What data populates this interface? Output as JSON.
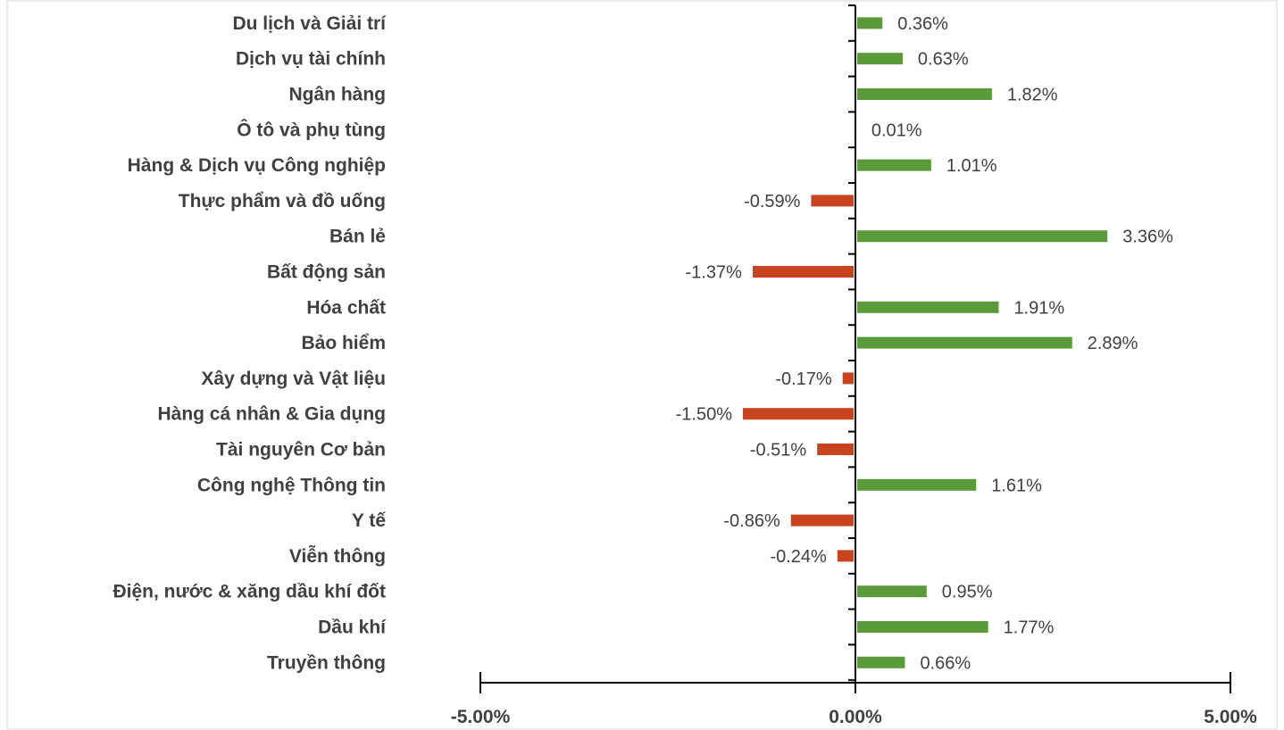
{
  "chart_data": {
    "type": "bar",
    "orientation": "horizontal",
    "categories": [
      "Du lịch và Giải trí",
      "Dịch vụ tài chính",
      "Ngân hàng",
      "Ô tô và phụ tùng",
      "Hàng & Dịch vụ Công nghiệp",
      "Thực phẩm và đồ uống",
      "Bán lẻ",
      "Bất động sản",
      "Hóa chất",
      "Bảo hiểm",
      "Xây dựng và Vật liệu",
      "Hàng cá nhân & Gia dụng",
      "Tài nguyên Cơ bản",
      "Công nghệ Thông tin",
      "Y tế",
      "Viễn thông",
      "Điện, nước & xăng dầu khí đốt",
      "Dầu khí",
      "Truyền thông"
    ],
    "values": [
      0.36,
      0.63,
      1.82,
      0.01,
      1.01,
      -0.59,
      3.36,
      -1.37,
      1.91,
      2.89,
      -0.17,
      -1.5,
      -0.51,
      1.61,
      -0.86,
      -0.24,
      0.95,
      1.77,
      0.66
    ],
    "value_labels": [
      "0.36%",
      "0.63%",
      "1.82%",
      "0.01%",
      "1.01%",
      "-0.59%",
      "3.36%",
      "-1.37%",
      "1.91%",
      "2.89%",
      "-0.17%",
      "-1.50%",
      "-0.51%",
      "1.61%",
      "-0.86%",
      "-0.24%",
      "0.95%",
      "1.77%",
      "0.66%"
    ],
    "x_ticks": [
      -5,
      0,
      5
    ],
    "x_tick_labels": [
      "-5.00%",
      "0.00%",
      "5.00%"
    ],
    "xlim": [
      -5,
      5
    ],
    "title": "",
    "xlabel": "",
    "ylabel": "",
    "grid": false,
    "legend": "none",
    "colors": {
      "positive": "#5b9a3a",
      "negative": "#c8441f",
      "axis": "#000000",
      "text": "#404040",
      "border": "#d9d9d9"
    }
  }
}
